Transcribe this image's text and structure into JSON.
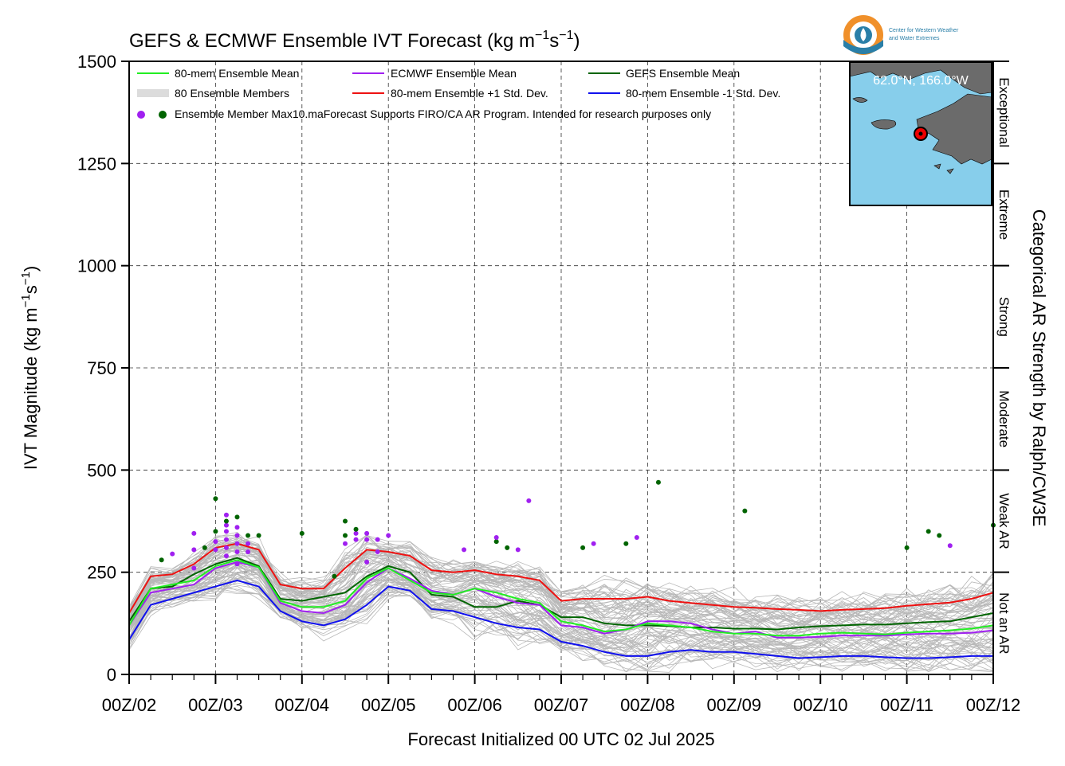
{
  "chart_data": {
    "type": "line",
    "title_parts": [
      "GEFS & ECMWF Ensemble IVT Forecast (kg m",
      "−1",
      "s",
      "−1",
      ")"
    ],
    "ylabel_parts": [
      "IVT Magnitude (kg m",
      "−1",
      "s",
      "−1",
      ")"
    ],
    "xlabel": "Forecast Initialized 00 UTC 02 Jul 2025",
    "right_label": "Categorical AR Strength by Ralph/CW3E",
    "xlim": [
      0,
      240
    ],
    "ylim": [
      0,
      1500
    ],
    "yticks": [
      0,
      250,
      500,
      750,
      1000,
      1250,
      1500
    ],
    "ytick_labels": [
      "0",
      "250",
      "500",
      "750",
      "1000",
      "1250",
      "1500"
    ],
    "xticks": [
      0,
      24,
      48,
      72,
      96,
      120,
      144,
      168,
      192,
      216,
      240
    ],
    "xtick_labels": [
      "00Z/02",
      "00Z/03",
      "00Z/04",
      "00Z/05",
      "00Z/06",
      "00Z/07",
      "00Z/08",
      "00Z/09",
      "00Z/10",
      "00Z/11",
      "00Z/12"
    ],
    "grid": true,
    "categories": [
      {
        "label": "Not an AR",
        "range": [
          0,
          250
        ]
      },
      {
        "label": "Weak AR",
        "range": [
          250,
          500
        ]
      },
      {
        "label": "Moderate",
        "range": [
          500,
          750
        ]
      },
      {
        "label": "Strong",
        "range": [
          750,
          1000
        ]
      },
      {
        "label": "Extreme",
        "range": [
          1000,
          1250
        ]
      },
      {
        "label": "Exceptional",
        "range": [
          1250,
          1500
        ]
      }
    ],
    "legend": {
      "placement": "top-left",
      "entries": [
        {
          "label": "80-mem Ensemble Mean",
          "color": "#22ee22"
        },
        {
          "label": "ECMWF Ensemble Mean",
          "color": "#a020f0"
        },
        {
          "label": "GEFS Ensemble Mean",
          "color": "#006400"
        },
        {
          "label": "80 Ensemble Members",
          "color": "#aaaaaa"
        },
        {
          "label": "80-mem Ensemble +1 Std. Dev.",
          "color": "#ee1111"
        },
        {
          "label": "80-mem Ensemble -1 Std. Dev.",
          "color": "#1010ee"
        }
      ],
      "max_label": "Ensemble Member Max",
      "note": "10.maForecast Supports FIRO/CA AR Program. Intended for research purposes only"
    },
    "inset_label": "62.0°N, 166.0°W",
    "logo_text": [
      "Center for Western Weather",
      "and Water Extremes"
    ],
    "colors": {
      "ens_mean": "#22ee22",
      "ecmwf_mean": "#a020f0",
      "gefs_mean": "#006400",
      "members": "#b8b8b8",
      "plus_sd": "#ee1111",
      "minus_sd": "#1010ee",
      "ocean": "#87ceeb",
      "land": "#6b6b6b",
      "point": "#ee0000"
    },
    "x": [
      0,
      6,
      12,
      18,
      24,
      30,
      36,
      42,
      48,
      54,
      60,
      66,
      72,
      78,
      84,
      90,
      96,
      102,
      108,
      114,
      120,
      126,
      132,
      138,
      144,
      150,
      156,
      162,
      168,
      174,
      180,
      186,
      192,
      198,
      204,
      210,
      216,
      222,
      228,
      234,
      240
    ],
    "series": [
      {
        "name": "80-mem Ensemble Mean",
        "key": "ens_mean",
        "values": [
          120,
          210,
          220,
          230,
          265,
          280,
          262,
          180,
          165,
          165,
          180,
          235,
          260,
          230,
          200,
          195,
          210,
          200,
          185,
          175,
          130,
          120,
          105,
          110,
          125,
          120,
          115,
          105,
          100,
          100,
          95,
          95,
          100,
          102,
          100,
          98,
          102,
          105,
          108,
          112,
          120
        ]
      },
      {
        "name": "ECMWF Ensemble Mean",
        "key": "ecmwf_mean",
        "values": [
          120,
          200,
          210,
          220,
          260,
          275,
          262,
          175,
          155,
          150,
          170,
          225,
          260,
          235,
          205,
          195,
          210,
          190,
          175,
          170,
          120,
          115,
          100,
          110,
          130,
          130,
          125,
          110,
          100,
          105,
          90,
          90,
          92,
          95,
          95,
          95,
          98,
          100,
          100,
          102,
          108
        ]
      },
      {
        "name": "GEFS Ensemble Mean",
        "key": "gefs_mean",
        "values": [
          130,
          210,
          215,
          245,
          270,
          285,
          265,
          185,
          180,
          190,
          200,
          240,
          265,
          250,
          195,
          190,
          165,
          165,
          180,
          170,
          140,
          140,
          125,
          120,
          120,
          118,
          115,
          115,
          112,
          112,
          110,
          115,
          118,
          120,
          122,
          122,
          125,
          128,
          130,
          140,
          150
        ]
      },
      {
        "name": "80-mem Ensemble +1 Std. Dev.",
        "key": "plus_sd",
        "values": [
          150,
          240,
          245,
          270,
          310,
          320,
          305,
          220,
          210,
          210,
          260,
          305,
          300,
          290,
          255,
          250,
          255,
          245,
          240,
          230,
          180,
          185,
          185,
          185,
          190,
          180,
          175,
          170,
          165,
          163,
          160,
          158,
          155,
          158,
          160,
          162,
          168,
          172,
          176,
          185,
          200
        ]
      },
      {
        "name": "80-mem Ensemble -1 Std. Dev.",
        "key": "minus_sd",
        "values": [
          85,
          170,
          185,
          200,
          215,
          230,
          215,
          155,
          130,
          120,
          135,
          170,
          215,
          205,
          160,
          155,
          140,
          125,
          115,
          110,
          80,
          70,
          55,
          45,
          45,
          55,
          60,
          55,
          55,
          50,
          45,
          40,
          42,
          45,
          45,
          42,
          40,
          40,
          42,
          45,
          45
        ]
      }
    ],
    "member_max_points": [
      {
        "x": 9,
        "y": 280,
        "c": "gefs"
      },
      {
        "x": 12,
        "y": 295,
        "c": "ecmwf"
      },
      {
        "x": 18,
        "y": 260,
        "c": "ecmwf"
      },
      {
        "x": 18,
        "y": 305,
        "c": "ecmwf"
      },
      {
        "x": 18,
        "y": 345,
        "c": "ecmwf"
      },
      {
        "x": 21,
        "y": 310,
        "c": "gefs"
      },
      {
        "x": 24,
        "y": 305,
        "c": "ecmwf"
      },
      {
        "x": 24,
        "y": 325,
        "c": "ecmwf"
      },
      {
        "x": 24,
        "y": 350,
        "c": "gefs"
      },
      {
        "x": 24,
        "y": 430,
        "c": "gefs"
      },
      {
        "x": 27,
        "y": 290,
        "c": "ecmwf"
      },
      {
        "x": 27,
        "y": 310,
        "c": "ecmwf"
      },
      {
        "x": 27,
        "y": 330,
        "c": "ecmwf"
      },
      {
        "x": 27,
        "y": 350,
        "c": "ecmwf"
      },
      {
        "x": 27,
        "y": 365,
        "c": "ecmwf"
      },
      {
        "x": 27,
        "y": 375,
        "c": "gefs"
      },
      {
        "x": 27,
        "y": 390,
        "c": "ecmwf"
      },
      {
        "x": 30,
        "y": 270,
        "c": "ecmwf"
      },
      {
        "x": 30,
        "y": 300,
        "c": "ecmwf"
      },
      {
        "x": 30,
        "y": 320,
        "c": "ecmwf"
      },
      {
        "x": 30,
        "y": 340,
        "c": "ecmwf"
      },
      {
        "x": 30,
        "y": 360,
        "c": "ecmwf"
      },
      {
        "x": 30,
        "y": 385,
        "c": "gefs"
      },
      {
        "x": 33,
        "y": 300,
        "c": "ecmwf"
      },
      {
        "x": 33,
        "y": 320,
        "c": "ecmwf"
      },
      {
        "x": 33,
        "y": 340,
        "c": "gefs"
      },
      {
        "x": 36,
        "y": 340,
        "c": "gefs"
      },
      {
        "x": 48,
        "y": 345,
        "c": "gefs"
      },
      {
        "x": 57,
        "y": 240,
        "c": "gefs"
      },
      {
        "x": 60,
        "y": 320,
        "c": "ecmwf"
      },
      {
        "x": 60,
        "y": 340,
        "c": "gefs"
      },
      {
        "x": 60,
        "y": 375,
        "c": "gefs"
      },
      {
        "x": 63,
        "y": 330,
        "c": "ecmwf"
      },
      {
        "x": 63,
        "y": 345,
        "c": "ecmwf"
      },
      {
        "x": 63,
        "y": 355,
        "c": "gefs"
      },
      {
        "x": 66,
        "y": 275,
        "c": "ecmwf"
      },
      {
        "x": 66,
        "y": 330,
        "c": "ecmwf"
      },
      {
        "x": 66,
        "y": 345,
        "c": "ecmwf"
      },
      {
        "x": 69,
        "y": 300,
        "c": "ecmwf"
      },
      {
        "x": 69,
        "y": 330,
        "c": "ecmwf"
      },
      {
        "x": 72,
        "y": 340,
        "c": "ecmwf"
      },
      {
        "x": 93,
        "y": 305,
        "c": "ecmwf"
      },
      {
        "x": 102,
        "y": 325,
        "c": "gefs"
      },
      {
        "x": 102,
        "y": 335,
        "c": "ecmwf"
      },
      {
        "x": 105,
        "y": 310,
        "c": "gefs"
      },
      {
        "x": 108,
        "y": 305,
        "c": "ecmwf"
      },
      {
        "x": 111,
        "y": 425,
        "c": "ecmwf"
      },
      {
        "x": 126,
        "y": 310,
        "c": "gefs"
      },
      {
        "x": 129,
        "y": 320,
        "c": "ecmwf"
      },
      {
        "x": 138,
        "y": 320,
        "c": "gefs"
      },
      {
        "x": 141,
        "y": 335,
        "c": "ecmwf"
      },
      {
        "x": 147,
        "y": 470,
        "c": "gefs"
      },
      {
        "x": 171,
        "y": 400,
        "c": "gefs"
      },
      {
        "x": 216,
        "y": 310,
        "c": "gefs"
      },
      {
        "x": 222,
        "y": 350,
        "c": "gefs"
      },
      {
        "x": 225,
        "y": 340,
        "c": "gefs"
      },
      {
        "x": 228,
        "y": 315,
        "c": "ecmwf"
      },
      {
        "x": 240,
        "y": 365,
        "c": "gefs"
      }
    ]
  }
}
